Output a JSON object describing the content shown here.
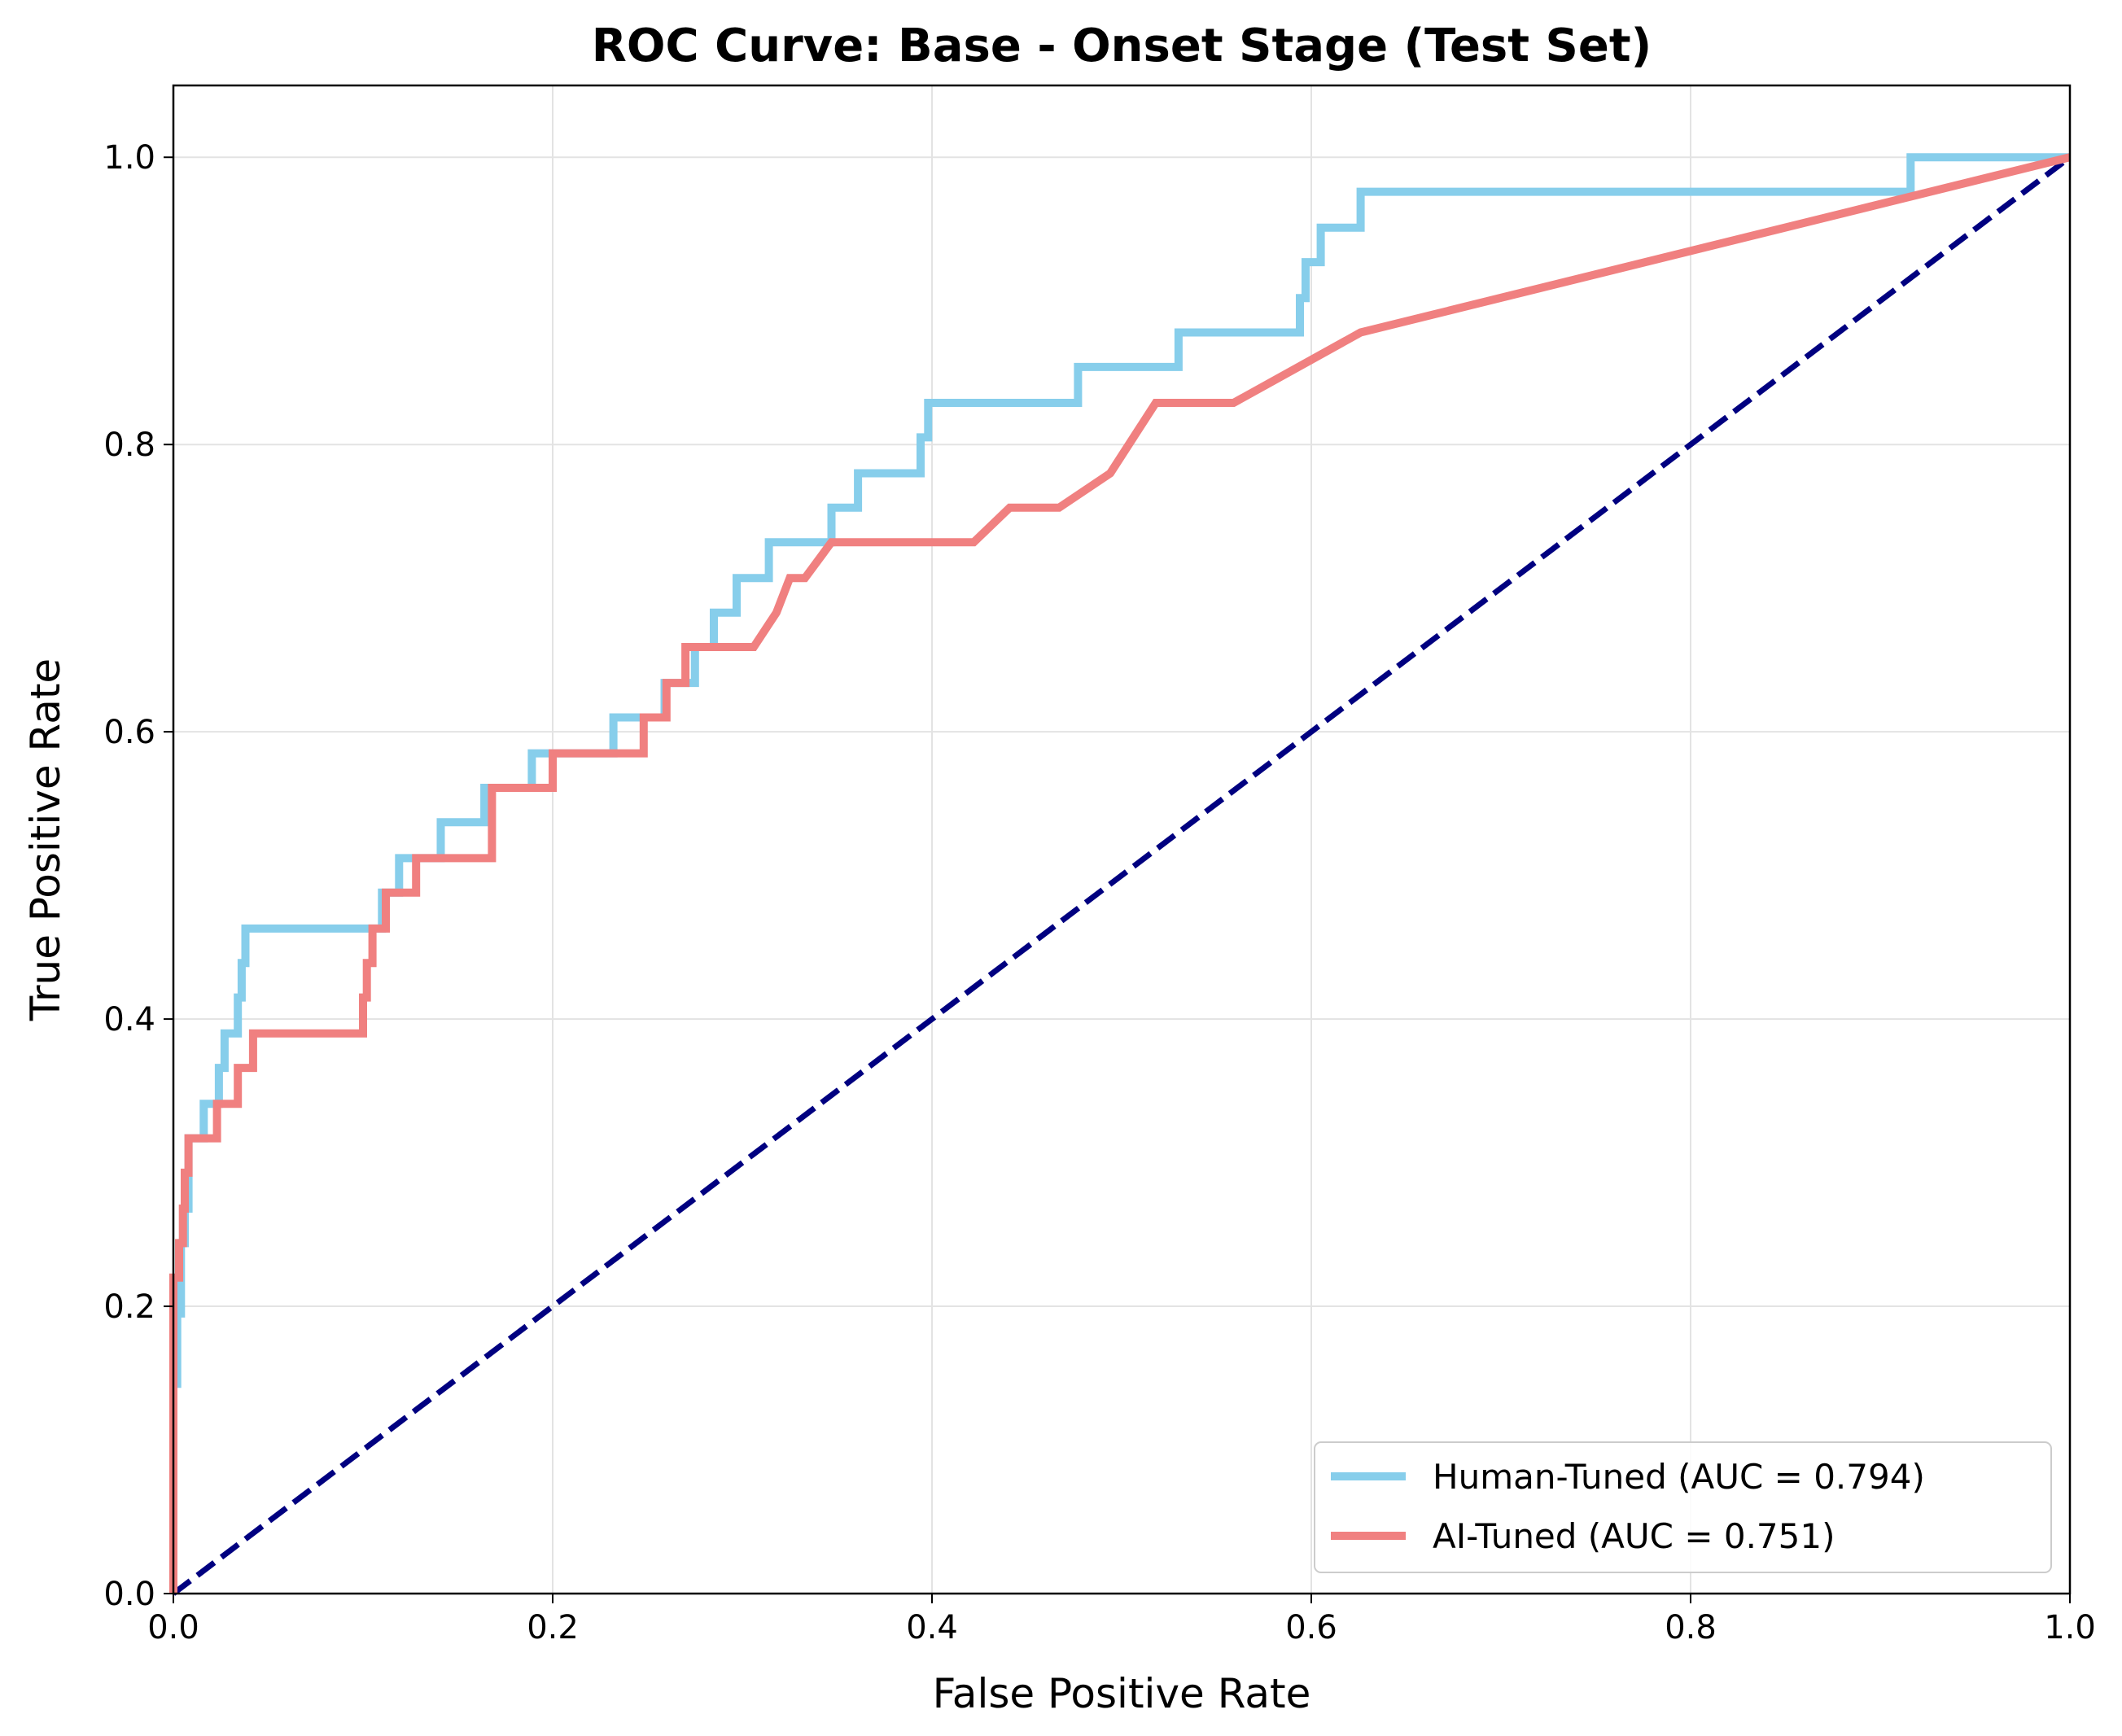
{
  "chart_data": {
    "type": "line",
    "title": "ROC Curve: Base - Onset Stage (Test Set)",
    "xlabel": "False Positive Rate",
    "ylabel": "True Positive Rate",
    "xlim": [
      0,
      1
    ],
    "ylim": [
      0,
      1.05
    ],
    "xticks": [
      "0.0",
      "0.2",
      "0.4",
      "0.6",
      "0.8",
      "1.0"
    ],
    "yticks": [
      "0.0",
      "0.2",
      "0.4",
      "0.6",
      "0.8",
      "1.0"
    ],
    "grid": true,
    "legend_position": "lower-right",
    "series": [
      {
        "name": "Human-Tuned (AUC = 0.794)",
        "color": "#87ceeb",
        "x": [
          0.0,
          0.0,
          0.002,
          0.002,
          0.004,
          0.004,
          0.006,
          0.006,
          0.008,
          0.008,
          0.016,
          0.016,
          0.024,
          0.024,
          0.027,
          0.027,
          0.034,
          0.034,
          0.036,
          0.036,
          0.038,
          0.038,
          0.11,
          0.11,
          0.119,
          0.119,
          0.141,
          0.141,
          0.164,
          0.164,
          0.189,
          0.189,
          0.232,
          0.232,
          0.259,
          0.259,
          0.275,
          0.275,
          0.285,
          0.285,
          0.297,
          0.297,
          0.314,
          0.314,
          0.347,
          0.347,
          0.361,
          0.361,
          0.394,
          0.394,
          0.398,
          0.398,
          0.477,
          0.477,
          0.53,
          0.53,
          0.594,
          0.594,
          0.597,
          0.597,
          0.605,
          0.605,
          0.626,
          0.626,
          0.916,
          0.916,
          1.0
        ],
        "y": [
          0.0,
          0.146,
          0.146,
          0.195,
          0.195,
          0.244,
          0.244,
          0.268,
          0.268,
          0.317,
          0.317,
          0.341,
          0.341,
          0.366,
          0.366,
          0.39,
          0.39,
          0.415,
          0.415,
          0.439,
          0.439,
          0.463,
          0.463,
          0.488,
          0.488,
          0.512,
          0.512,
          0.537,
          0.537,
          0.561,
          0.561,
          0.585,
          0.585,
          0.61,
          0.61,
          0.634,
          0.634,
          0.659,
          0.659,
          0.683,
          0.683,
          0.707,
          0.707,
          0.732,
          0.732,
          0.756,
          0.756,
          0.78,
          0.78,
          0.805,
          0.805,
          0.829,
          0.829,
          0.854,
          0.854,
          0.878,
          0.878,
          0.902,
          0.902,
          0.927,
          0.927,
          0.951,
          0.951,
          0.976,
          0.976,
          1.0,
          1.0
        ]
      },
      {
        "name": "AI-Tuned (AUC = 0.751)",
        "color": "#f08080",
        "x": [
          0.0,
          0.0,
          0.003,
          0.003,
          0.005,
          0.005,
          0.006,
          0.006,
          0.008,
          0.008,
          0.023,
          0.023,
          0.034,
          0.034,
          0.042,
          0.042,
          0.1,
          0.1,
          0.102,
          0.102,
          0.105,
          0.105,
          0.112,
          0.112,
          0.128,
          0.128,
          0.168,
          0.168,
          0.2,
          0.2,
          0.248,
          0.248,
          0.26,
          0.26,
          0.27,
          0.27,
          0.306,
          0.306,
          0.318,
          0.325,
          0.333,
          0.347,
          0.422,
          0.441,
          0.467,
          0.494,
          0.518,
          0.559,
          0.626,
          1.0
        ],
        "y": [
          0.0,
          0.22,
          0.22,
          0.244,
          0.244,
          0.268,
          0.268,
          0.293,
          0.293,
          0.317,
          0.317,
          0.341,
          0.341,
          0.366,
          0.366,
          0.39,
          0.39,
          0.415,
          0.415,
          0.439,
          0.439,
          0.463,
          0.463,
          0.488,
          0.488,
          0.512,
          0.512,
          0.561,
          0.561,
          0.585,
          0.585,
          0.61,
          0.61,
          0.634,
          0.634,
          0.659,
          0.659,
          0.659,
          0.683,
          0.707,
          0.707,
          0.732,
          0.732,
          0.756,
          0.756,
          0.78,
          0.829,
          0.829,
          0.878,
          1.0
        ]
      }
    ],
    "reference_line": {
      "x": [
        0,
        1
      ],
      "y": [
        0,
        1
      ],
      "color": "#000080",
      "style": "dashed"
    }
  }
}
